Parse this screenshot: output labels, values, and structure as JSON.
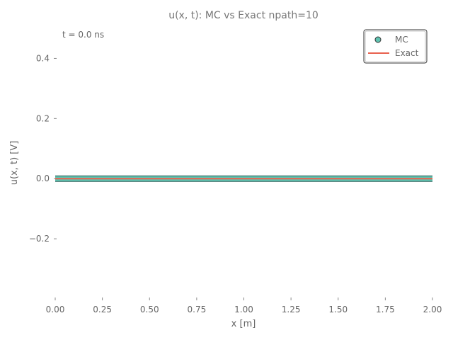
{
  "chart_data": {
    "type": "line",
    "title": "u(x, t): MC vs Exact  npath=10",
    "xlabel": "x [m]",
    "ylabel": "u(x, t) [V]",
    "annotation": "t = 0.0 ns",
    "xlim": [
      0.0,
      2.0
    ],
    "ylim": [
      -0.4,
      0.5
    ],
    "xticks": [
      "0.00",
      "0.25",
      "0.50",
      "0.75",
      "1.00",
      "1.25",
      "1.50",
      "1.75",
      "2.00"
    ],
    "xtick_values": [
      0.0,
      0.25,
      0.5,
      0.75,
      1.0,
      1.25,
      1.5,
      1.75,
      2.0
    ],
    "yticks": [
      "0.4",
      "0.2",
      "0.0",
      "−0.2"
    ],
    "ytick_values": [
      0.4,
      0.2,
      0.0,
      -0.2
    ],
    "grid": false,
    "legend_position": "top-right",
    "series": [
      {
        "name": "MC",
        "marker": "circle",
        "color": "#5fc2b0",
        "x": [
          0.0,
          0.25,
          0.5,
          0.75,
          1.0,
          1.25,
          1.5,
          1.75,
          2.0
        ],
        "y": [
          0.0,
          0.0,
          0.0,
          0.0,
          0.0,
          0.0,
          0.0,
          0.0,
          0.0
        ]
      },
      {
        "name": "Exact",
        "marker": "line",
        "color": "#e8614e",
        "x": [
          0.0,
          2.0
        ],
        "y": [
          0.0,
          0.0
        ]
      }
    ]
  }
}
